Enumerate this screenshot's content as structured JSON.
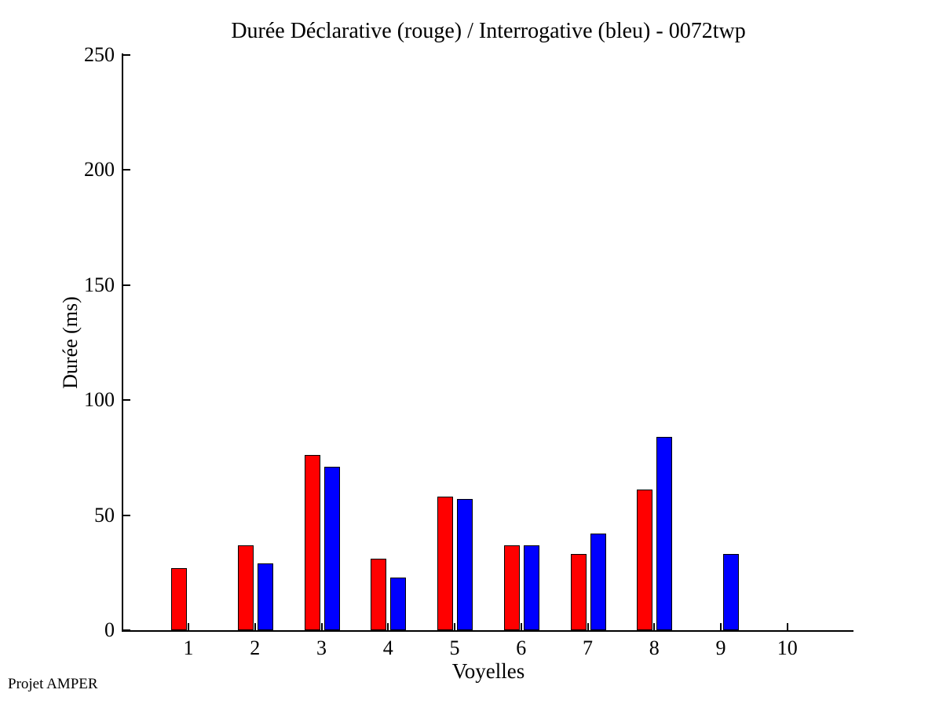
{
  "footer": {
    "credit": "Projet AMPER"
  },
  "chart_data": {
    "type": "bar",
    "title": "Durée Déclarative (rouge) / Interrogative (bleu) - 0072twp",
    "xlabel": "Voyelles",
    "ylabel": "Durée (ms)",
    "categories": [
      "1",
      "2",
      "3",
      "4",
      "5",
      "6",
      "7",
      "8",
      "9",
      "10"
    ],
    "series": [
      {
        "name": "Déclarative",
        "color": "#ff0000",
        "values": [
          27,
          37,
          76,
          31,
          58,
          37,
          33,
          61,
          null,
          null
        ]
      },
      {
        "name": "Interrogative",
        "color": "#0000ff",
        "values": [
          null,
          29,
          71,
          23,
          57,
          37,
          42,
          84,
          33,
          null
        ]
      }
    ],
    "ylim": [
      0,
      250
    ],
    "yticks": [
      0,
      50,
      100,
      150,
      200,
      250
    ],
    "grid": false,
    "legend_position": "encoded-in-title",
    "axis_color": "#000000",
    "background_color": "#ffffff"
  }
}
